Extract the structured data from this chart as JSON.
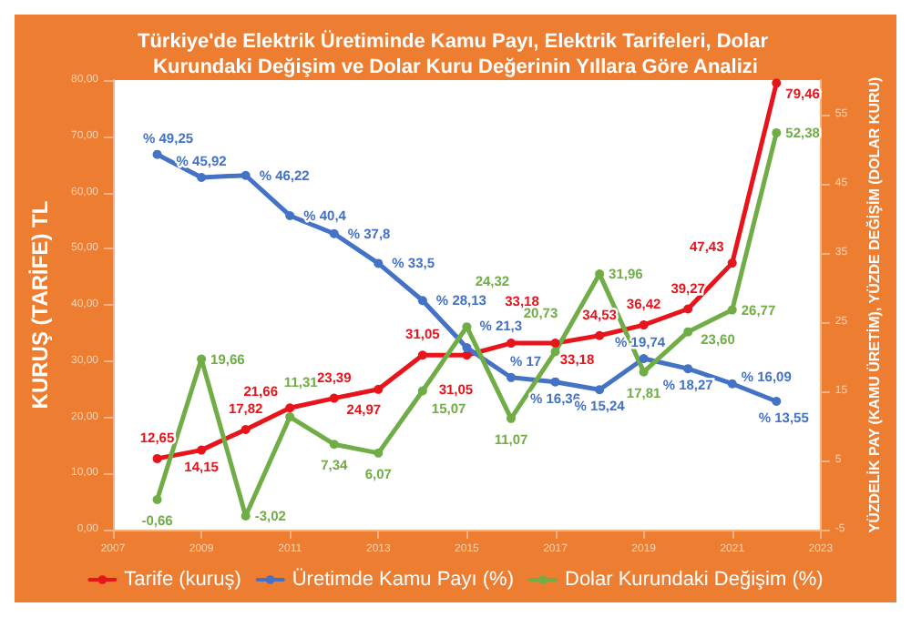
{
  "chart_data": {
    "type": "line",
    "title": "Türkiye'de Elektrik Üretiminde Kamu Payı, Elektrik Tarifeleri, Dolar Kurundaki Değişim ve Dolar Kuru Değerinin Yıllara Göre Analizi",
    "ylabel": "KURUŞ (TARİFE) TL",
    "y2label": "YÜZDELİK PAY (KAMU ÜRETİM), YÜZDE DEĞİŞİM (DOLAR KURU)",
    "x": [
      2008,
      2009,
      2010,
      2011,
      2012,
      2013,
      2014,
      2015,
      2016,
      2017,
      2018,
      2019,
      2020,
      2021,
      2022
    ],
    "series": [
      {
        "name": "Tarife (kuruş)",
        "color": "#e8141b",
        "values": [
          12.65,
          14.15,
          17.82,
          21.66,
          23.39,
          24.97,
          31.05,
          31.05,
          33.18,
          33.18,
          34.53,
          36.42,
          39.27,
          47.43,
          79.46
        ],
        "value_labels": [
          "12,65",
          "14,15",
          "17,82",
          "21,66",
          "23,39",
          "24,97",
          "31,05",
          "31,05",
          "33,18",
          "33,18",
          "34,53",
          "36,42",
          "39,27",
          "47,43",
          "79,46"
        ]
      },
      {
        "name": "Üretimde Kamu Payı (%)",
        "color": "#4472c4",
        "axis": "y2",
        "values": [
          49.25,
          45.92,
          46.22,
          40.4,
          37.8,
          33.5,
          28.13,
          21.3,
          17,
          16.36,
          15.24,
          19.74,
          18.27,
          16.09,
          13.55
        ],
        "value_labels": [
          "% 49,25",
          "% 45,92",
          "% 46,22",
          "% 40,4",
          "% 37,8",
          "% 33,5",
          "% 28,13",
          "% 21,3",
          "% 17",
          "% 16,36",
          "% 15,24",
          "% 19,74",
          "% 18,27",
          "% 16,09",
          "% 13,55"
        ]
      },
      {
        "name": "Dolar Kurundaki Değişim (%)",
        "color": "#70ad47",
        "axis": "y2",
        "values": [
          -0.66,
          19.66,
          -3.02,
          11.31,
          7.34,
          6.07,
          15.07,
          24.32,
          11.07,
          20.73,
          31.96,
          17.81,
          23.6,
          26.77,
          52.38
        ],
        "value_labels": [
          "-0,66",
          "19,66",
          "-3,02",
          "11,31",
          "7,34",
          "6,07",
          "15,07",
          "24,32",
          "11,07",
          "20,73",
          "31,96",
          "17,81",
          "23,60",
          "26,77",
          "52,38"
        ]
      }
    ],
    "xlim": [
      2007,
      2023
    ],
    "xticks": [
      2007,
      2009,
      2011,
      2013,
      2015,
      2017,
      2019,
      2021,
      2023
    ],
    "ylim": [
      0,
      80
    ],
    "yticks": [
      {
        "value": 0,
        "label": "0,00"
      },
      {
        "value": 10,
        "label": "10,00"
      },
      {
        "value": 20,
        "label": "20,00"
      },
      {
        "value": 30,
        "label": "30,00"
      },
      {
        "value": 40,
        "label": "40,00"
      },
      {
        "value": 50,
        "label": "50,00"
      },
      {
        "value": 60,
        "label": "60,00"
      },
      {
        "value": 70,
        "label": "70,00"
      },
      {
        "value": 80,
        "label": "80,00"
      }
    ],
    "y2lim": [
      -5,
      60
    ],
    "y2ticks": [
      -5,
      5,
      15,
      25,
      35,
      45,
      55
    ],
    "grid": false,
    "legend": "bottom",
    "marker": "circle",
    "line_style": "solid"
  }
}
